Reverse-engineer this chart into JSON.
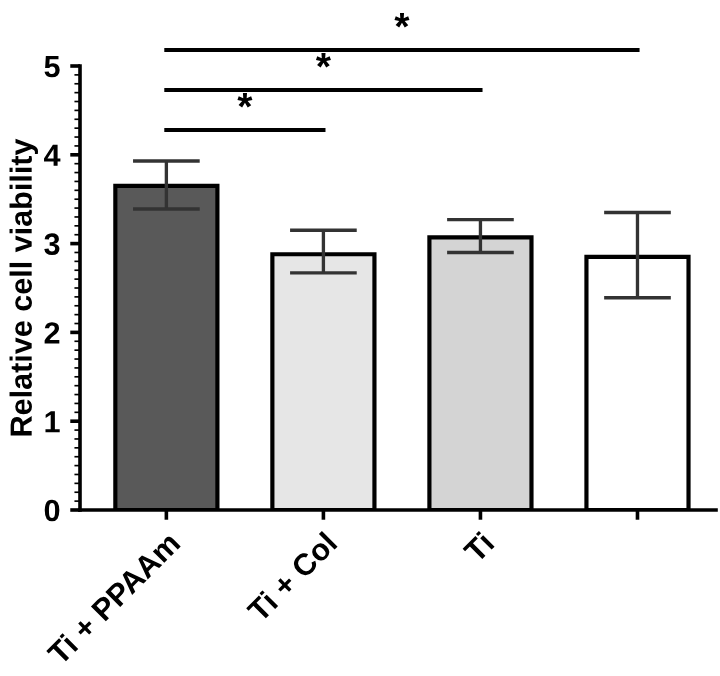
{
  "chart_data": {
    "type": "bar",
    "ylabel": "Relative cell viability",
    "categories": [
      "Ti + PPAAm",
      "Ti + Col",
      "Ti",
      null
    ],
    "values": [
      3.65,
      2.88,
      3.07,
      2.85
    ],
    "colors": [
      "#595959",
      "#e6e6e6",
      "#d4d4d4",
      "#ffffff"
    ],
    "errors": [
      [
        3.39,
        3.93
      ],
      [
        2.67,
        3.15
      ],
      [
        2.9,
        3.27
      ],
      [
        2.39,
        3.35
      ]
    ],
    "ylim": [
      0,
      5
    ],
    "yticks": [
      0,
      1,
      2,
      3,
      4,
      5
    ],
    "grid": false,
    "legend": false,
    "annotations": [
      "*",
      "*",
      "*"
    ]
  }
}
